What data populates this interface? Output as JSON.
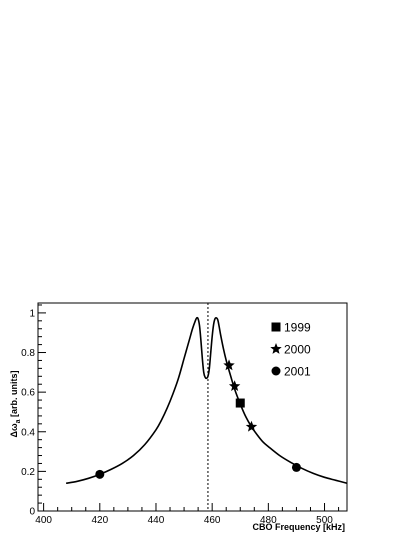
{
  "chart_data": {
    "type": "line",
    "xlabel": "CBO Frequency [kHz]",
    "ylabel": "Δω",
    "ylabel_subscript": "a",
    "ylabel_suffix": " [arb. units]",
    "xlim": [
      398,
      508
    ],
    "ylim": [
      0,
      1.05
    ],
    "x_ticks": [
      400,
      420,
      440,
      460,
      480,
      500
    ],
    "y_ticks": [
      0,
      0.2,
      0.4,
      0.6,
      0.8,
      1
    ],
    "y_tick_labels": [
      "0",
      "0.2",
      "0.4",
      "0.6",
      "0.8",
      "1"
    ],
    "grid": false,
    "legend_placement": "top-right",
    "reference_line": {
      "x": 458.5,
      "style": "dotted"
    },
    "curve": {
      "x": [
        408,
        412,
        416,
        420,
        424,
        428,
        432,
        436,
        440,
        442,
        444,
        446,
        448,
        450,
        451,
        452,
        453,
        454,
        454.5,
        455,
        455.5,
        456,
        456.5,
        457,
        457.5,
        458,
        458.5,
        459,
        459.5,
        460,
        460.5,
        461,
        461.5,
        462,
        462.5,
        463,
        464,
        465,
        466,
        468,
        470,
        472,
        474,
        476,
        478,
        480,
        484,
        488,
        492,
        496,
        500,
        504,
        508
      ],
      "y": [
        0.14,
        0.15,
        0.165,
        0.185,
        0.21,
        0.24,
        0.28,
        0.335,
        0.41,
        0.46,
        0.52,
        0.59,
        0.67,
        0.77,
        0.82,
        0.87,
        0.92,
        0.96,
        0.975,
        0.97,
        0.935,
        0.86,
        0.77,
        0.7,
        0.675,
        0.67,
        0.68,
        0.72,
        0.8,
        0.88,
        0.94,
        0.97,
        0.975,
        0.965,
        0.93,
        0.89,
        0.82,
        0.76,
        0.71,
        0.615,
        0.54,
        0.475,
        0.425,
        0.385,
        0.35,
        0.325,
        0.28,
        0.245,
        0.215,
        0.19,
        0.17,
        0.155,
        0.14
      ]
    },
    "series": [
      {
        "name": "1999",
        "marker": "square",
        "points": [
          {
            "x": 470,
            "y": 0.545
          }
        ]
      },
      {
        "name": "2000",
        "marker": "star",
        "points": [
          {
            "x": 466,
            "y": 0.735
          },
          {
            "x": 468,
            "y": 0.63
          },
          {
            "x": 474,
            "y": 0.425
          }
        ]
      },
      {
        "name": "2001",
        "marker": "circle",
        "points": [
          {
            "x": 420,
            "y": 0.185
          },
          {
            "x": 490,
            "y": 0.22
          }
        ]
      }
    ]
  }
}
